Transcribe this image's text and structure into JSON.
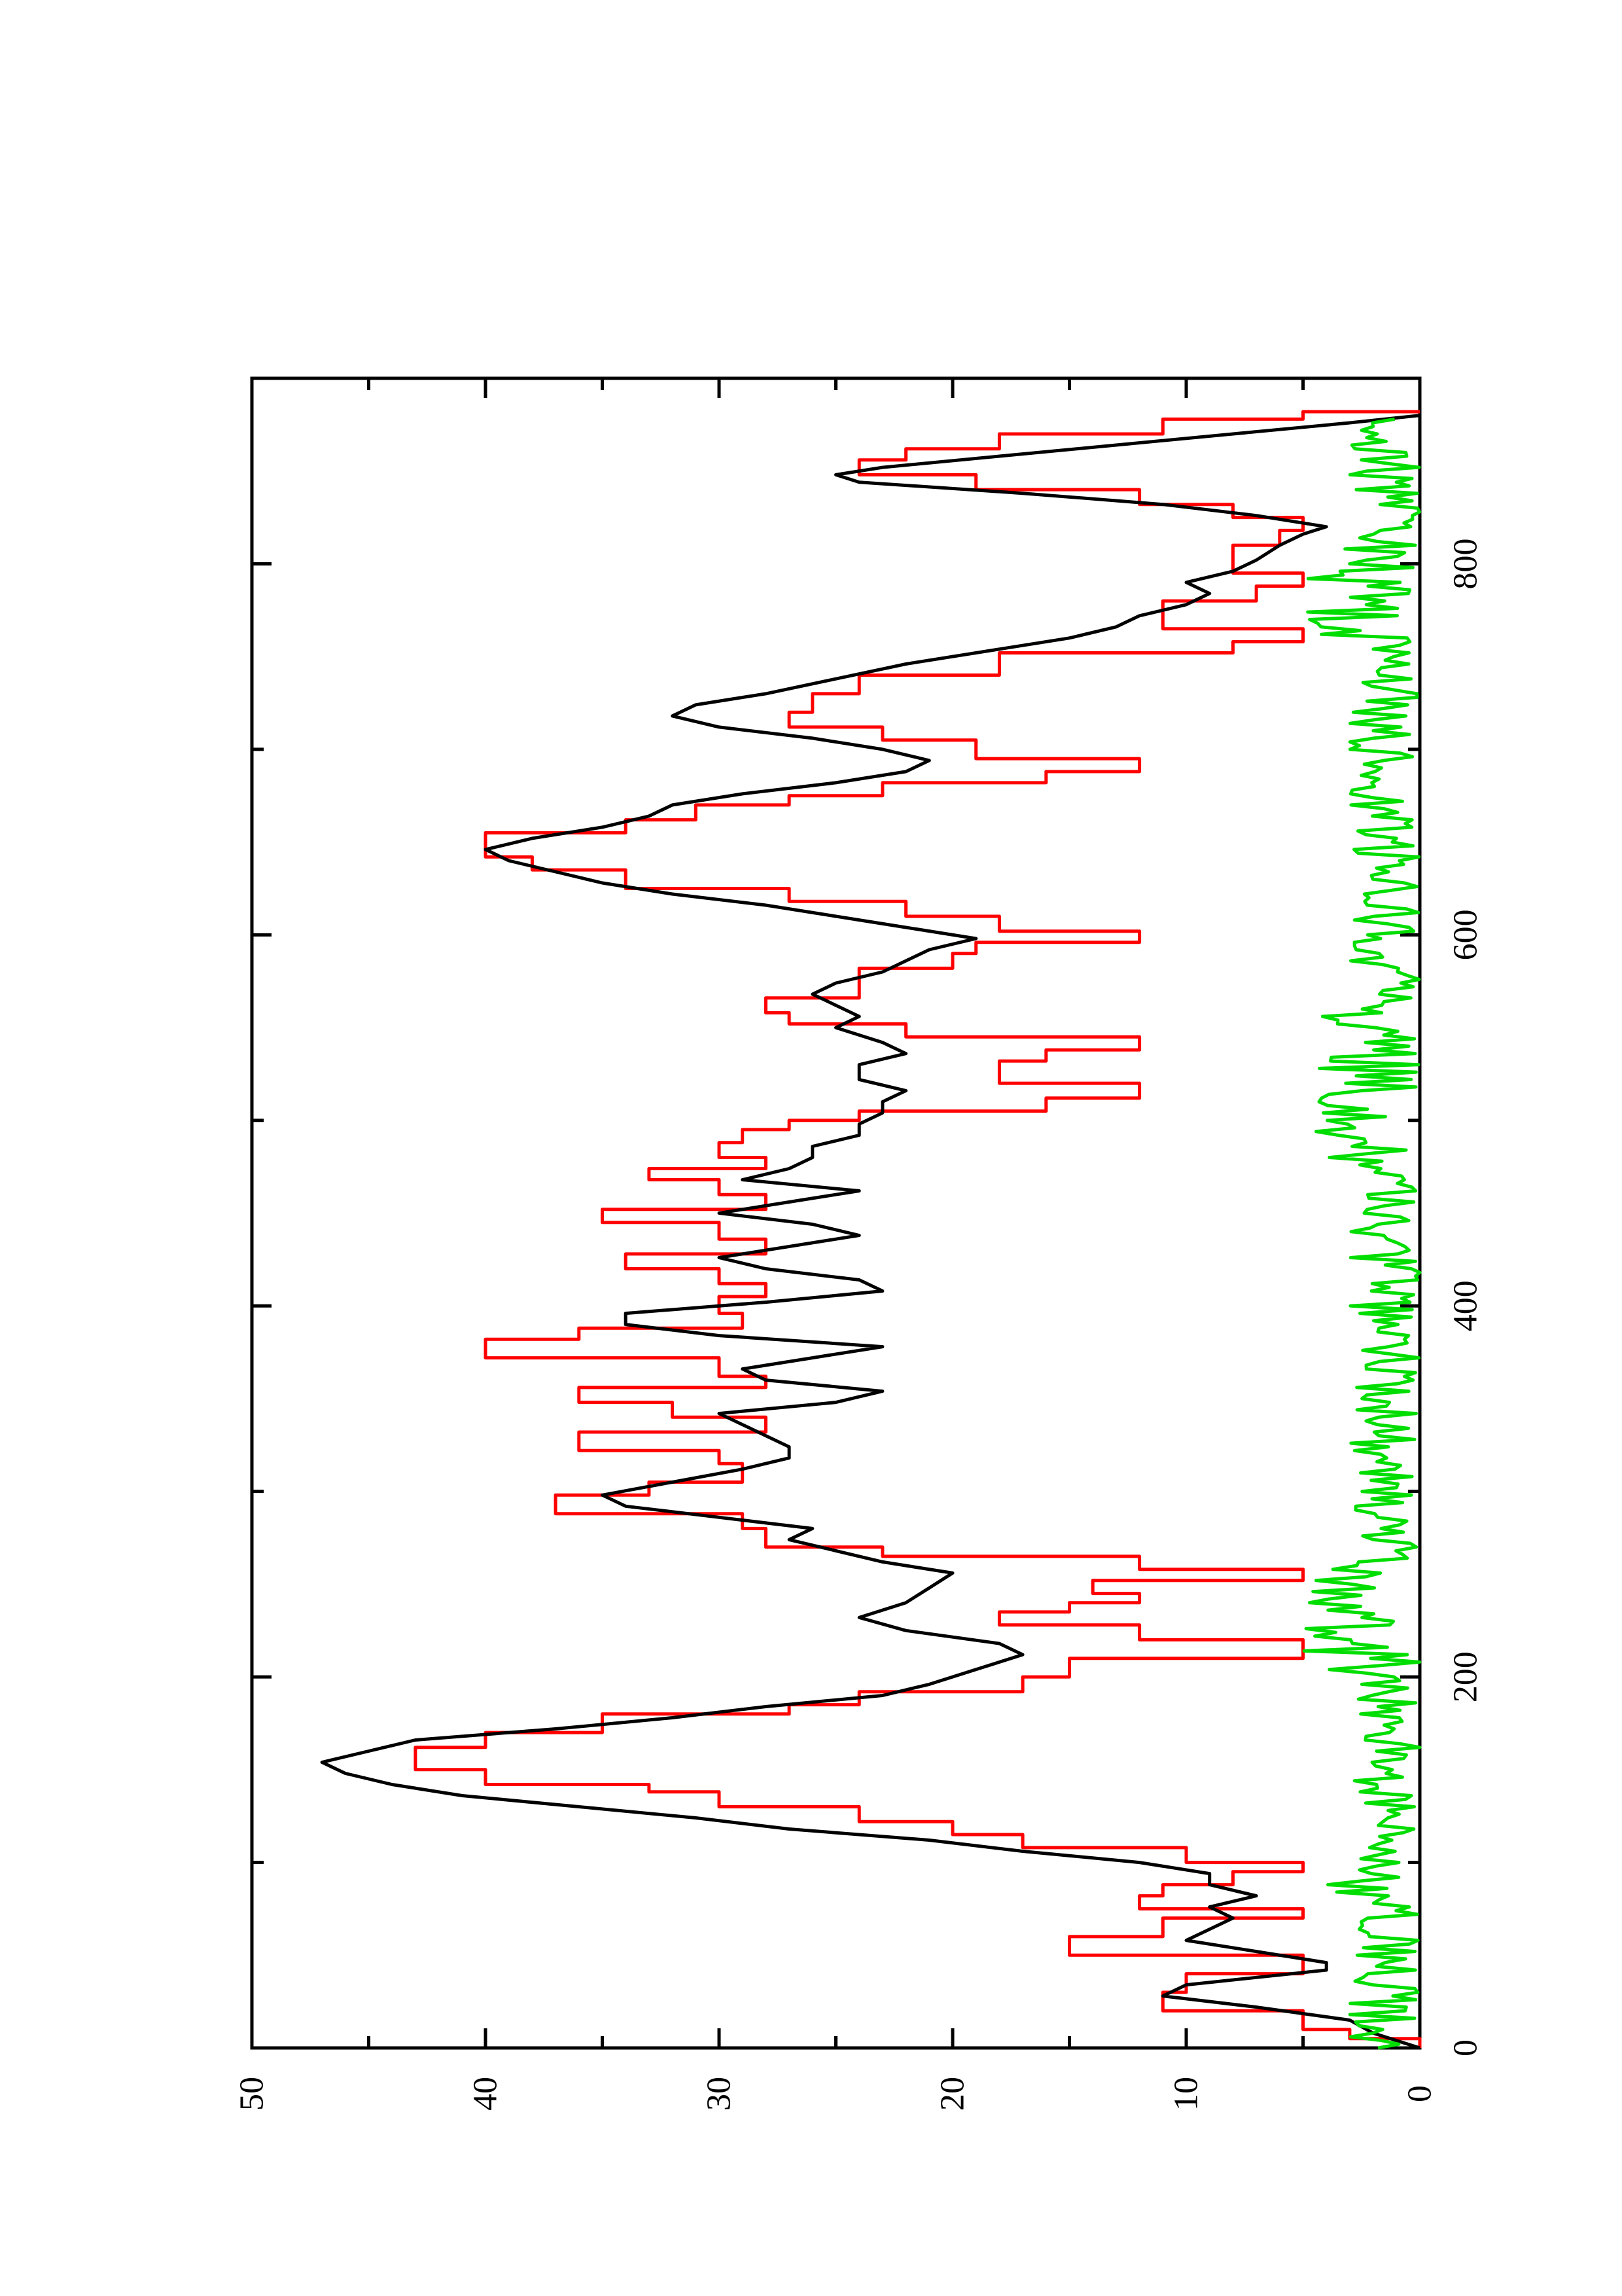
{
  "chart_data": {
    "type": "line",
    "orientation": "rotated-90-ccw",
    "title": "",
    "xlabel": "",
    "ylabel": "",
    "xlim": [
      0,
      900
    ],
    "ylim": [
      0,
      50
    ],
    "x_ticks": [
      0,
      200,
      400,
      600,
      800
    ],
    "x_tick_labels": [
      "0",
      "200",
      "400",
      "600",
      "800"
    ],
    "y_ticks": [
      0,
      10,
      20,
      30,
      40,
      50
    ],
    "y_tick_labels": [
      "0",
      "10",
      "20",
      "30",
      "40",
      "50"
    ],
    "grid": false,
    "legend": "none",
    "series": [
      {
        "color": "#ff0000",
        "style": "step",
        "points": [
          [
            0,
            0
          ],
          [
            5,
            3
          ],
          [
            10,
            5
          ],
          [
            20,
            11
          ],
          [
            30,
            10
          ],
          [
            40,
            5
          ],
          [
            50,
            15
          ],
          [
            60,
            11
          ],
          [
            70,
            5
          ],
          [
            75,
            12
          ],
          [
            82,
            11
          ],
          [
            88,
            8
          ],
          [
            95,
            5
          ],
          [
            100,
            10
          ],
          [
            108,
            17
          ],
          [
            115,
            20
          ],
          [
            122,
            24
          ],
          [
            130,
            30
          ],
          [
            138,
            33
          ],
          [
            142,
            40
          ],
          [
            150,
            43
          ],
          [
            162,
            40
          ],
          [
            170,
            35
          ],
          [
            180,
            27
          ],
          [
            185,
            24
          ],
          [
            192,
            17
          ],
          [
            200,
            15
          ],
          [
            210,
            5
          ],
          [
            220,
            12
          ],
          [
            228,
            18
          ],
          [
            235,
            15
          ],
          [
            240,
            12
          ],
          [
            245,
            14
          ],
          [
            252,
            5
          ],
          [
            258,
            12
          ],
          [
            265,
            23
          ],
          [
            270,
            28
          ],
          [
            280,
            29
          ],
          [
            288,
            37
          ],
          [
            298,
            33
          ],
          [
            305,
            29
          ],
          [
            315,
            30
          ],
          [
            322,
            36
          ],
          [
            332,
            28
          ],
          [
            340,
            32
          ],
          [
            348,
            36
          ],
          [
            356,
            28
          ],
          [
            362,
            30
          ],
          [
            372,
            40
          ],
          [
            382,
            36
          ],
          [
            388,
            29
          ],
          [
            396,
            30
          ],
          [
            405,
            28
          ],
          [
            412,
            30
          ],
          [
            420,
            34
          ],
          [
            428,
            28
          ],
          [
            436,
            30
          ],
          [
            445,
            35
          ],
          [
            452,
            28
          ],
          [
            460,
            30
          ],
          [
            468,
            33
          ],
          [
            474,
            28
          ],
          [
            480,
            30
          ],
          [
            488,
            29
          ],
          [
            495,
            27
          ],
          [
            500,
            24
          ],
          [
            505,
            16
          ],
          [
            512,
            12
          ],
          [
            520,
            18
          ],
          [
            532,
            16
          ],
          [
            538,
            12
          ],
          [
            545,
            22
          ],
          [
            552,
            27
          ],
          [
            558,
            28
          ],
          [
            566,
            24
          ],
          [
            574,
            24
          ],
          [
            582,
            20
          ],
          [
            590,
            19
          ],
          [
            596,
            12
          ],
          [
            602,
            18
          ],
          [
            610,
            22
          ],
          [
            618,
            27
          ],
          [
            625,
            34
          ],
          [
            635,
            38
          ],
          [
            642,
            40
          ],
          [
            655,
            34
          ],
          [
            662,
            31
          ],
          [
            670,
            27
          ],
          [
            675,
            23
          ],
          [
            682,
            16
          ],
          [
            688,
            12
          ],
          [
            695,
            19
          ],
          [
            705,
            23
          ],
          [
            712,
            27
          ],
          [
            720,
            26
          ],
          [
            730,
            24
          ],
          [
            740,
            18
          ],
          [
            752,
            8
          ],
          [
            758,
            5
          ],
          [
            765,
            11
          ],
          [
            772,
            11
          ],
          [
            780,
            7
          ],
          [
            788,
            5
          ],
          [
            795,
            8
          ],
          [
            803,
            8
          ],
          [
            810,
            6
          ],
          [
            818,
            5
          ],
          [
            825,
            8
          ],
          [
            832,
            12
          ],
          [
            840,
            19
          ],
          [
            848,
            24
          ],
          [
            856,
            22
          ],
          [
            862,
            18
          ],
          [
            870,
            11
          ],
          [
            878,
            5
          ],
          [
            882,
            0
          ]
        ]
      },
      {
        "color": "#000000",
        "style": "line",
        "points": [
          [
            0,
            0
          ],
          [
            8,
            2
          ],
          [
            15,
            3
          ],
          [
            22,
            7
          ],
          [
            28,
            11
          ],
          [
            34,
            10
          ],
          [
            38,
            7
          ],
          [
            42,
            4
          ],
          [
            46,
            4
          ],
          [
            52,
            7
          ],
          [
            58,
            10
          ],
          [
            64,
            9
          ],
          [
            70,
            8
          ],
          [
            76,
            9
          ],
          [
            82,
            7
          ],
          [
            88,
            9
          ],
          [
            94,
            9
          ],
          [
            100,
            12
          ],
          [
            106,
            17
          ],
          [
            112,
            21
          ],
          [
            118,
            27
          ],
          [
            124,
            31
          ],
          [
            130,
            36
          ],
          [
            136,
            41
          ],
          [
            142,
            44
          ],
          [
            148,
            46
          ],
          [
            154,
            47
          ],
          [
            160,
            45
          ],
          [
            166,
            43
          ],
          [
            172,
            37
          ],
          [
            178,
            32
          ],
          [
            184,
            28
          ],
          [
            190,
            23
          ],
          [
            196,
            21
          ],
          [
            204,
            19
          ],
          [
            212,
            17
          ],
          [
            218,
            18
          ],
          [
            225,
            22
          ],
          [
            232,
            24
          ],
          [
            240,
            22
          ],
          [
            248,
            21
          ],
          [
            256,
            20
          ],
          [
            262,
            23
          ],
          [
            268,
            25
          ],
          [
            274,
            27
          ],
          [
            280,
            26
          ],
          [
            286,
            30
          ],
          [
            292,
            34
          ],
          [
            298,
            35
          ],
          [
            305,
            32
          ],
          [
            312,
            29
          ],
          [
            318,
            27
          ],
          [
            324,
            27
          ],
          [
            330,
            28
          ],
          [
            336,
            29
          ],
          [
            342,
            30
          ],
          [
            348,
            25
          ],
          [
            354,
            23
          ],
          [
            360,
            28
          ],
          [
            366,
            29
          ],
          [
            372,
            26
          ],
          [
            378,
            23
          ],
          [
            384,
            30
          ],
          [
            390,
            34
          ],
          [
            396,
            34
          ],
          [
            402,
            28
          ],
          [
            408,
            23
          ],
          [
            414,
            24
          ],
          [
            420,
            28
          ],
          [
            426,
            30
          ],
          [
            432,
            27
          ],
          [
            438,
            24
          ],
          [
            444,
            26
          ],
          [
            450,
            30
          ],
          [
            456,
            27
          ],
          [
            462,
            24
          ],
          [
            468,
            29
          ],
          [
            474,
            27
          ],
          [
            480,
            26
          ],
          [
            486,
            26
          ],
          [
            492,
            24
          ],
          [
            498,
            24
          ],
          [
            504,
            23
          ],
          [
            510,
            23
          ],
          [
            516,
            22
          ],
          [
            522,
            24
          ],
          [
            530,
            24
          ],
          [
            536,
            22
          ],
          [
            542,
            23
          ],
          [
            550,
            25
          ],
          [
            556,
            24
          ],
          [
            562,
            25
          ],
          [
            568,
            26
          ],
          [
            574,
            25
          ],
          [
            580,
            23
          ],
          [
            586,
            22
          ],
          [
            592,
            21
          ],
          [
            598,
            19
          ],
          [
            604,
            22
          ],
          [
            610,
            25
          ],
          [
            616,
            28
          ],
          [
            622,
            32
          ],
          [
            628,
            35
          ],
          [
            634,
            37
          ],
          [
            640,
            39
          ],
          [
            646,
            40
          ],
          [
            652,
            38
          ],
          [
            658,
            35
          ],
          [
            664,
            33
          ],
          [
            670,
            32
          ],
          [
            676,
            29
          ],
          [
            682,
            25
          ],
          [
            688,
            22
          ],
          [
            694,
            21
          ],
          [
            700,
            23
          ],
          [
            706,
            26
          ],
          [
            712,
            30
          ],
          [
            718,
            32
          ],
          [
            724,
            31
          ],
          [
            730,
            28
          ],
          [
            738,
            25
          ],
          [
            746,
            22
          ],
          [
            754,
            18
          ],
          [
            760,
            15
          ],
          [
            766,
            13
          ],
          [
            772,
            12
          ],
          [
            778,
            10
          ],
          [
            784,
            9
          ],
          [
            790,
            10
          ],
          [
            796,
            8
          ],
          [
            802,
            7
          ],
          [
            810,
            6
          ],
          [
            816,
            5
          ],
          [
            820,
            4
          ],
          [
            826,
            7
          ],
          [
            832,
            11
          ],
          [
            838,
            17
          ],
          [
            844,
            24
          ],
          [
            848,
            25
          ],
          [
            852,
            23
          ],
          [
            858,
            18
          ],
          [
            864,
            13
          ],
          [
            870,
            8
          ],
          [
            876,
            3
          ],
          [
            880,
            0
          ]
        ]
      },
      {
        "color": "#00dd00",
        "style": "noisy",
        "segments": [
          {
            "from": 0,
            "to": 80,
            "low": 0,
            "high": 3
          },
          {
            "from": 80,
            "to": 100,
            "low": 0,
            "high": 4.5
          },
          {
            "from": 100,
            "to": 200,
            "low": 0,
            "high": 3
          },
          {
            "from": 200,
            "to": 260,
            "low": 0,
            "high": 5
          },
          {
            "from": 260,
            "to": 480,
            "low": 0,
            "high": 3
          },
          {
            "from": 480,
            "to": 560,
            "low": 0,
            "high": 4.5
          },
          {
            "from": 560,
            "to": 760,
            "low": 0,
            "high": 3
          },
          {
            "from": 760,
            "to": 810,
            "low": 0,
            "high": 5
          },
          {
            "from": 810,
            "to": 880,
            "low": 0,
            "high": 3
          }
        ]
      }
    ]
  }
}
